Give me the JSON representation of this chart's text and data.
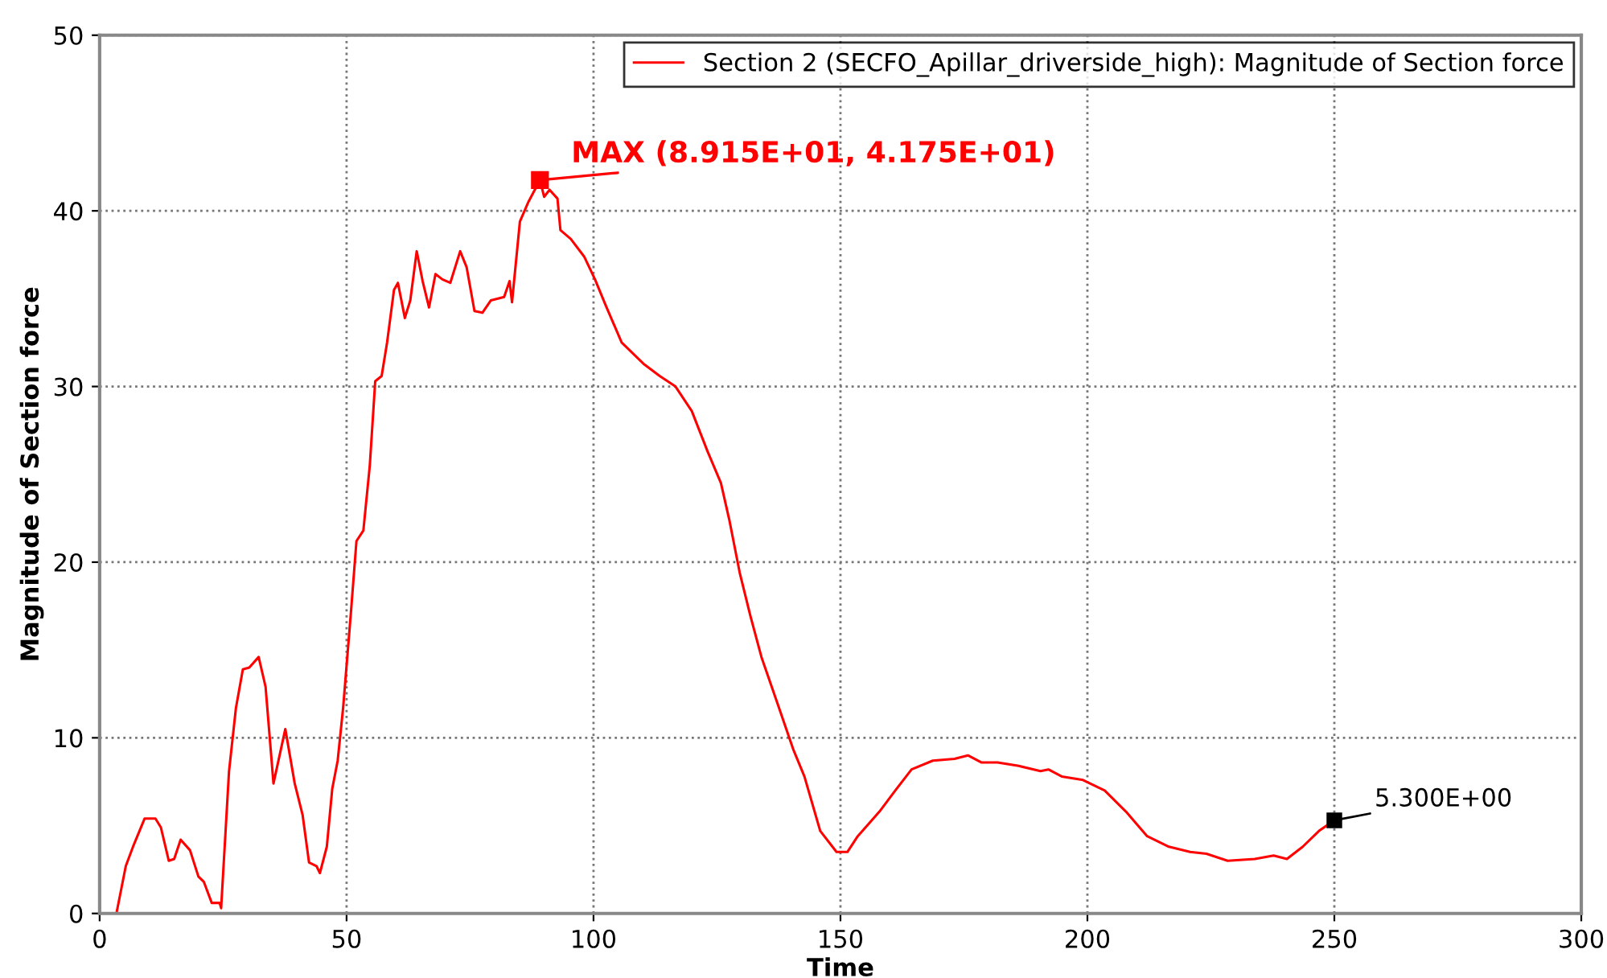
{
  "chart_data": {
    "type": "line",
    "xlabel": "Time",
    "ylabel": "Magnitude of Section force",
    "xlim": [
      0,
      300
    ],
    "xticks": [
      0,
      50,
      100,
      150,
      200,
      250,
      300
    ],
    "ylim": [
      0,
      50
    ],
    "yticks": [
      0,
      10,
      20,
      30,
      40,
      50
    ],
    "grid": true,
    "legend": "top right",
    "marker": "none",
    "line_style": "solid",
    "series": [
      {
        "name": "Section 2 (SECFO_Apillar_driverside_high): Magnitude of Section force",
        "color": "#ff0000",
        "x": [
          0,
          3.4,
          5.3,
          6.9,
          9.1,
          11.3,
          12.4,
          14.0,
          15.1,
          16.4,
          18.3,
          20.0,
          21.1,
          22.7,
          24.3,
          24.6,
          26.2,
          27.6,
          29.0,
          30.3,
          32.2,
          33.6,
          35.2,
          37.6,
          39.5,
          41.1,
          42.4,
          43.9,
          44.6,
          46.0,
          47.1,
          48.2,
          49.3,
          50.9,
          52.0,
          53.4,
          54.7,
          55.8,
          57.1,
          58.2,
          59.6,
          60.4,
          61.8,
          62.9,
          64.2,
          65.4,
          66.7,
          68.0,
          69.4,
          71.0,
          73.0,
          74.3,
          75.9,
          77.5,
          79.2,
          81.9,
          83.0,
          83.5,
          85.1,
          86.8,
          89.15,
          90.0,
          91.1,
          92.7,
          93.3,
          95.4,
          98.1,
          100.3,
          102.5,
          105.7,
          110.1,
          113.4,
          116.6,
          119.9,
          123.1,
          125.8,
          127.5,
          129.6,
          131.8,
          134.0,
          137.2,
          140.5,
          142.7,
          145.9,
          149.2,
          151.4,
          153.5,
          157.9,
          161.1,
          164.4,
          168.7,
          173.1,
          175.8,
          178.5,
          181.8,
          186.1,
          190.5,
          192.1,
          194.8,
          199.1,
          203.5,
          207.8,
          212.1,
          216.5,
          220.8,
          224.1,
          228.4,
          233.9,
          237.7,
          240.4,
          243.6,
          246.9,
          250
        ],
        "values": [
          0,
          0,
          2.7,
          3.9,
          5.4,
          5.4,
          4.9,
          3.0,
          3.1,
          4.2,
          3.6,
          2.1,
          1.8,
          0.6,
          0.6,
          0.3,
          8.1,
          11.7,
          13.9,
          14.0,
          14.6,
          12.9,
          7.4,
          10.5,
          7.4,
          5.6,
          2.9,
          2.7,
          2.3,
          3.8,
          7.1,
          8.7,
          11.7,
          17.2,
          21.2,
          21.8,
          25.5,
          30.3,
          30.6,
          32.5,
          35.5,
          35.9,
          33.9,
          34.9,
          37.7,
          36.0,
          34.5,
          36.4,
          36.1,
          35.9,
          37.7,
          36.8,
          34.3,
          34.2,
          34.9,
          35.1,
          36.0,
          34.8,
          39.4,
          40.5,
          41.75,
          40.8,
          41.2,
          40.7,
          38.9,
          38.4,
          37.4,
          36.1,
          34.6,
          32.5,
          31.3,
          30.6,
          30.0,
          28.6,
          26.3,
          24.5,
          22.4,
          19.4,
          16.9,
          14.6,
          12.0,
          9.3,
          7.8,
          4.7,
          3.5,
          3.5,
          4.4,
          5.8,
          7.0,
          8.2,
          8.7,
          8.8,
          9.0,
          8.6,
          8.6,
          8.4,
          8.1,
          8.2,
          7.8,
          7.6,
          7.0,
          5.8,
          4.4,
          3.8,
          3.5,
          3.4,
          3.0,
          3.1,
          3.3,
          3.1,
          3.8,
          4.7,
          5.3
        ]
      }
    ],
    "annotations": [
      {
        "text": "MAX (8.915E+01, 4.175E+01)",
        "x": 89.15,
        "y": 41.75
      },
      {
        "text": "5.300E+00",
        "x": 250,
        "y": 5.3
      }
    ]
  }
}
